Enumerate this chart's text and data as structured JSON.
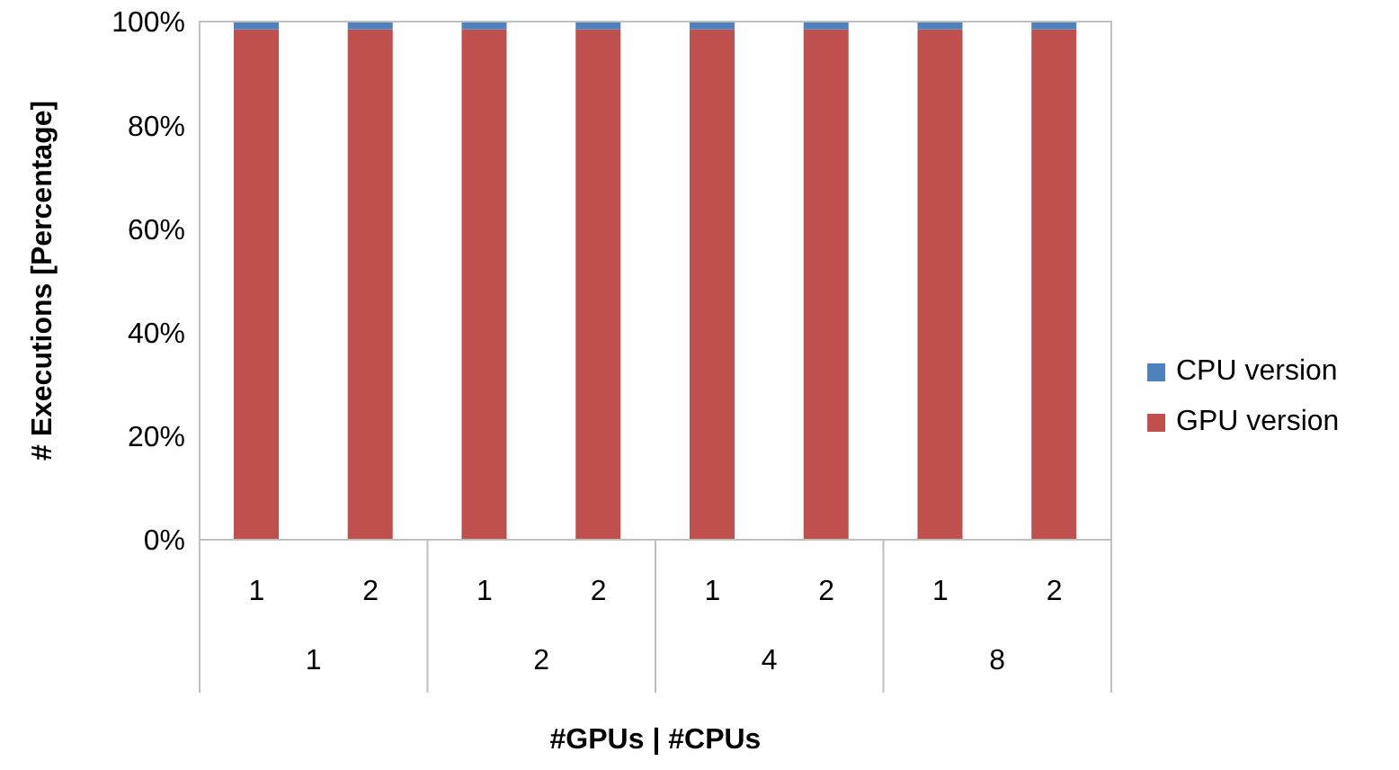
{
  "chart_data": {
    "type": "bar",
    "stacked": true,
    "xlabel": "#GPUs | #CPUs",
    "ylabel": "# Executions [Percentage]",
    "categories": [
      "1",
      "2",
      "1",
      "2",
      "1",
      "2",
      "1",
      "2"
    ],
    "annotations": [
      "1",
      "2",
      "4",
      "8"
    ],
    "series": [
      {
        "name": "GPU version",
        "color": "#c0504d",
        "values": [
          98.5,
          98.5,
          98.5,
          98.5,
          98.5,
          98.5,
          98.5,
          98.5
        ]
      },
      {
        "name": "CPU version",
        "color": "#4f81bd",
        "values": [
          1.5,
          1.5,
          1.5,
          1.5,
          1.5,
          1.5,
          1.5,
          1.5
        ]
      }
    ],
    "ylim": [
      0,
      100
    ],
    "yticks": [
      {
        "value": 0,
        "label": "0%"
      },
      {
        "value": 20,
        "label": "20%"
      },
      {
        "value": 40,
        "label": "40%"
      },
      {
        "value": 60,
        "label": "60%"
      },
      {
        "value": 80,
        "label": "80%"
      },
      {
        "value": 100,
        "label": "100%"
      }
    ],
    "legend": "right"
  }
}
